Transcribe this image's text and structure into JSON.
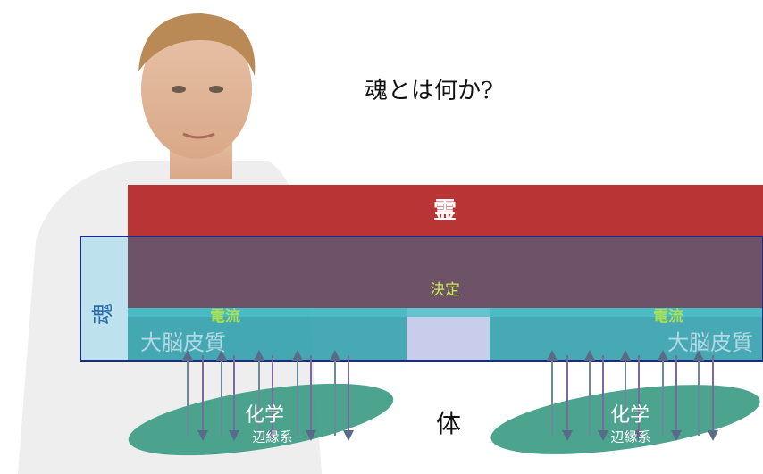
{
  "title": "魂とは何か?",
  "spirit": "霊",
  "soul": "魂",
  "decision": "決定",
  "body": "体",
  "sides": [
    {
      "current": "電流",
      "cortex": "大脳皮質",
      "chemistry": "化学",
      "limbic": "辺縁系"
    },
    {
      "current": "電流",
      "cortex": "大脳皮質",
      "chemistry": "化学",
      "limbic": "辺縁系"
    }
  ]
}
